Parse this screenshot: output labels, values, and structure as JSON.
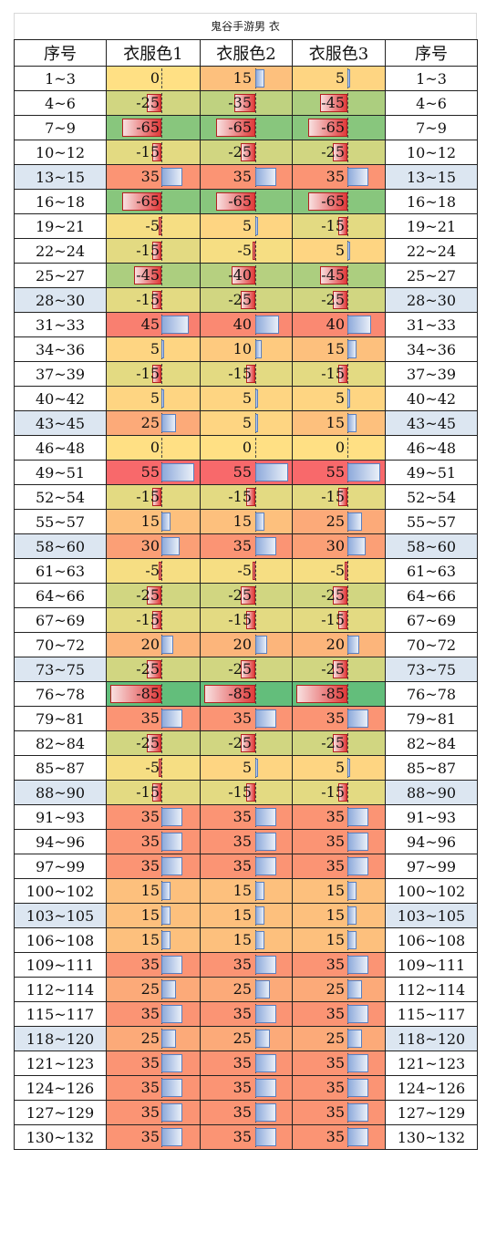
{
  "title": "鬼谷手游男 衣",
  "headers": [
    "序号",
    "衣服色1",
    "衣服色2",
    "衣服色3",
    "序号"
  ],
  "colors": {
    "header_row_highlight": "#dce6f1",
    "positive_bar": "#8eaadb",
    "negative_bar": "#e03a3a",
    "scale_green": "#63be7b",
    "scale_yellow": "#ffe084",
    "scale_red": "#f8696b"
  },
  "rows": [
    {
      "range": "1~3",
      "v": [
        0,
        15,
        5
      ],
      "hl": false
    },
    {
      "range": "4~6",
      "v": [
        -25,
        -35,
        -45
      ],
      "hl": false
    },
    {
      "range": "7~9",
      "v": [
        -65,
        -65,
        -65
      ],
      "hl": false
    },
    {
      "range": "10~12",
      "v": [
        -15,
        -25,
        -25
      ],
      "hl": false
    },
    {
      "range": "13~15",
      "v": [
        35,
        35,
        35
      ],
      "hl": true
    },
    {
      "range": "16~18",
      "v": [
        -65,
        -65,
        -65
      ],
      "hl": false
    },
    {
      "range": "19~21",
      "v": [
        -5,
        5,
        -15
      ],
      "hl": false
    },
    {
      "range": "22~24",
      "v": [
        -15,
        -5,
        5
      ],
      "hl": false
    },
    {
      "range": "25~27",
      "v": [
        -45,
        -40,
        -45
      ],
      "hl": false
    },
    {
      "range": "28~30",
      "v": [
        -15,
        -25,
        -25
      ],
      "hl": true
    },
    {
      "range": "31~33",
      "v": [
        45,
        40,
        40
      ],
      "hl": false
    },
    {
      "range": "34~36",
      "v": [
        5,
        10,
        15
      ],
      "hl": false
    },
    {
      "range": "37~39",
      "v": [
        -15,
        -15,
        -15
      ],
      "hl": false
    },
    {
      "range": "40~42",
      "v": [
        5,
        5,
        5
      ],
      "hl": false
    },
    {
      "range": "43~45",
      "v": [
        25,
        5,
        15
      ],
      "hl": true
    },
    {
      "range": "46~48",
      "v": [
        0,
        0,
        0
      ],
      "hl": false
    },
    {
      "range": "49~51",
      "v": [
        55,
        55,
        55
      ],
      "hl": false
    },
    {
      "range": "52~54",
      "v": [
        -15,
        -15,
        -15
      ],
      "hl": false
    },
    {
      "range": "55~57",
      "v": [
        15,
        15,
        25
      ],
      "hl": false
    },
    {
      "range": "58~60",
      "v": [
        30,
        35,
        30
      ],
      "hl": true
    },
    {
      "range": "61~63",
      "v": [
        -5,
        -5,
        -5
      ],
      "hl": false
    },
    {
      "range": "64~66",
      "v": [
        -25,
        -25,
        -25
      ],
      "hl": false
    },
    {
      "range": "67~69",
      "v": [
        -15,
        -15,
        -15
      ],
      "hl": false
    },
    {
      "range": "70~72",
      "v": [
        20,
        20,
        20
      ],
      "hl": false
    },
    {
      "range": "73~75",
      "v": [
        -25,
        -25,
        -25
      ],
      "hl": true
    },
    {
      "range": "76~78",
      "v": [
        -85,
        -85,
        -85
      ],
      "hl": false
    },
    {
      "range": "79~81",
      "v": [
        35,
        35,
        35
      ],
      "hl": false
    },
    {
      "range": "82~84",
      "v": [
        -25,
        -25,
        -25
      ],
      "hl": false
    },
    {
      "range": "85~87",
      "v": [
        -5,
        5,
        5
      ],
      "hl": false
    },
    {
      "range": "88~90",
      "v": [
        -15,
        -15,
        -15
      ],
      "hl": true
    },
    {
      "range": "91~93",
      "v": [
        35,
        35,
        35
      ],
      "hl": false
    },
    {
      "range": "94~96",
      "v": [
        35,
        35,
        35
      ],
      "hl": false
    },
    {
      "range": "97~99",
      "v": [
        35,
        35,
        35
      ],
      "hl": false
    },
    {
      "range": "100~102",
      "v": [
        15,
        15,
        15
      ],
      "hl": false
    },
    {
      "range": "103~105",
      "v": [
        15,
        15,
        15
      ],
      "hl": true
    },
    {
      "range": "106~108",
      "v": [
        15,
        15,
        15
      ],
      "hl": false
    },
    {
      "range": "109~111",
      "v": [
        35,
        35,
        35
      ],
      "hl": false
    },
    {
      "range": "112~114",
      "v": [
        25,
        25,
        25
      ],
      "hl": false
    },
    {
      "range": "115~117",
      "v": [
        35,
        35,
        35
      ],
      "hl": false
    },
    {
      "range": "118~120",
      "v": [
        25,
        25,
        25
      ],
      "hl": true
    },
    {
      "range": "121~123",
      "v": [
        35,
        35,
        35
      ],
      "hl": false
    },
    {
      "range": "124~126",
      "v": [
        35,
        35,
        35
      ],
      "hl": false
    },
    {
      "range": "127~129",
      "v": [
        35,
        35,
        35
      ],
      "hl": false
    },
    {
      "range": "130~132",
      "v": [
        35,
        35,
        35
      ],
      "hl": false
    }
  ]
}
